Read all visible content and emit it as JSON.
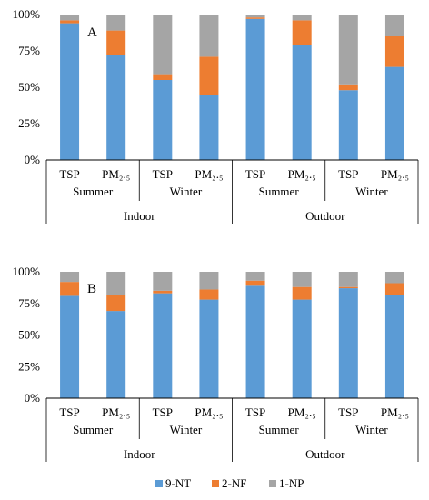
{
  "colors": {
    "9-NT": "#5b9bd5",
    "2-NF": "#ed7d31",
    "1-NP": "#a5a5a5"
  },
  "legend": {
    "placement": "bottom",
    "items": [
      "9-NT",
      "2-NF",
      "1-NP"
    ]
  },
  "chart_data": [
    {
      "type": "bar",
      "stacked": true,
      "panel": "A",
      "ylim": [
        0,
        100
      ],
      "yticks": [
        "0%",
        "25%",
        "50%",
        "75%",
        "100%"
      ],
      "categories": [
        "TSP",
        "PM2.5",
        "TSP",
        "PM2.5",
        "TSP",
        "PM2.5",
        "TSP",
        "PM2.5"
      ],
      "category_labels": [
        "TSP",
        "PM₂.₅",
        "TSP",
        "PM₂.₅",
        "TSP",
        "PM₂.₅",
        "TSP",
        "PM₂.₅"
      ],
      "season_groups": [
        "Summer",
        "Winter",
        "Summer",
        "Winter"
      ],
      "location_groups": [
        "Indoor",
        "Outdoor"
      ],
      "series": [
        {
          "name": "9-NT",
          "values": [
            94,
            72,
            55,
            45,
            97,
            79,
            48,
            64
          ]
        },
        {
          "name": "2-NF",
          "values": [
            2,
            17,
            4,
            26,
            1,
            17,
            4,
            21
          ]
        },
        {
          "name": "1-NP",
          "values": [
            4,
            11,
            41,
            29,
            2,
            4,
            48,
            15
          ]
        }
      ]
    },
    {
      "type": "bar",
      "stacked": true,
      "panel": "B",
      "ylim": [
        0,
        100
      ],
      "yticks": [
        "0%",
        "25%",
        "50%",
        "75%",
        "100%"
      ],
      "categories": [
        "TSP",
        "PM2.5",
        "TSP",
        "PM2.5",
        "TSP",
        "PM2.5",
        "TSP",
        "PM2.5"
      ],
      "category_labels": [
        "TSP",
        "PM₂.₅",
        "TSP",
        "PM₂.₅",
        "TSP",
        "PM₂.₅",
        "TSP",
        "PM₂.₅"
      ],
      "season_groups": [
        "Summer",
        "Winter",
        "Summer",
        "Winter"
      ],
      "location_groups": [
        "Indoor",
        "Outdoor"
      ],
      "series": [
        {
          "name": "9-NT",
          "values": [
            81,
            69,
            83,
            78,
            89,
            78,
            87,
            82
          ]
        },
        {
          "name": "2-NF",
          "values": [
            11,
            13,
            2,
            8,
            4,
            10,
            1,
            9
          ]
        },
        {
          "name": "1-NP",
          "values": [
            8,
            18,
            15,
            14,
            7,
            12,
            12,
            9
          ]
        }
      ]
    }
  ]
}
